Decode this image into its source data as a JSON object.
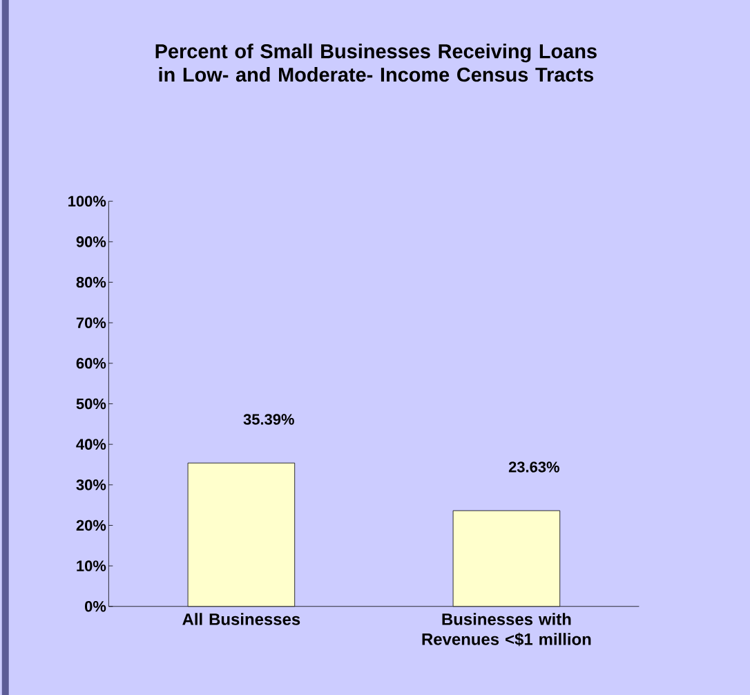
{
  "chart_data": {
    "type": "bar",
    "title": "Percent of Small Businesses Receiving Loans in Low- and Moderate- Income Census Tracts",
    "categories": [
      "All Businesses",
      "Businesses with Revenues <$1 million"
    ],
    "values": [
      35.39,
      23.63
    ],
    "color": "#ffffcc",
    "value_labels": [
      "35.39%",
      "23.63%"
    ],
    "ylim": [
      0,
      100
    ],
    "yticks": [
      {
        "value": 0,
        "label": "0%"
      },
      {
        "value": 10,
        "label": "10%"
      },
      {
        "value": 20,
        "label": "20%"
      },
      {
        "value": 30,
        "label": "30%"
      },
      {
        "value": 40,
        "label": "40%"
      },
      {
        "value": 50,
        "label": "50%"
      },
      {
        "value": 60,
        "label": "60%"
      },
      {
        "value": 70,
        "label": "70%"
      },
      {
        "value": 80,
        "label": "80%"
      },
      {
        "value": 90,
        "label": "90%"
      },
      {
        "value": 100,
        "label": "100%"
      }
    ],
    "grid": false
  }
}
